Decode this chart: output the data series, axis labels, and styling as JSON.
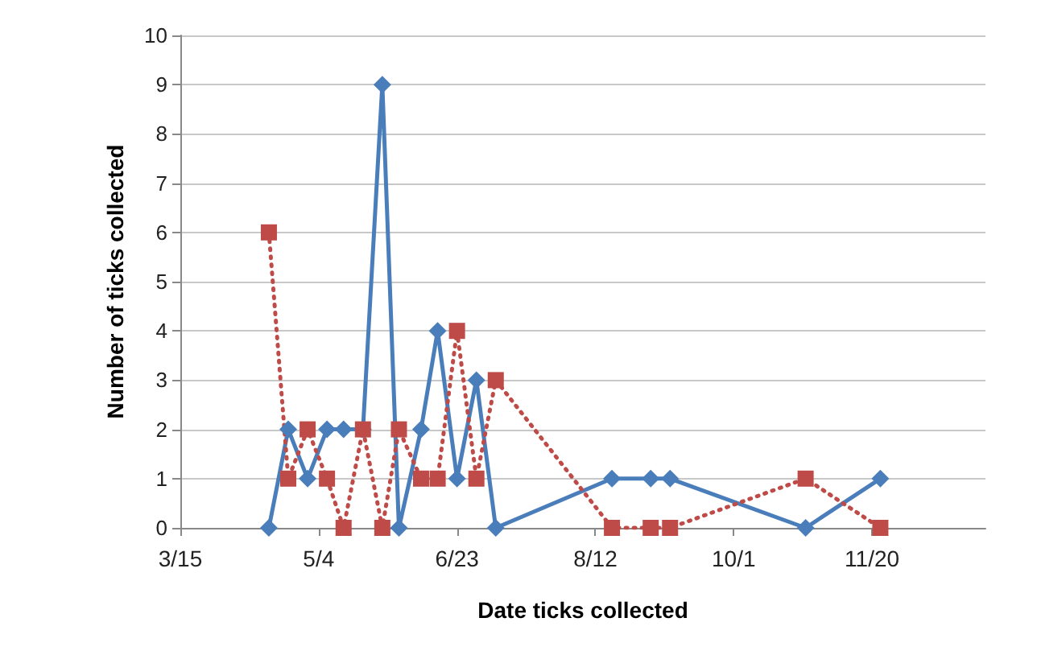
{
  "chart_data": {
    "type": "line",
    "xlabel": "Date ticks collected",
    "ylabel": "Number of ticks collected",
    "x": [
      "--04-16",
      "--04-23",
      "--04-30",
      "--05-07",
      "--05-13",
      "--05-20",
      "--05-27",
      "--06-02",
      "--06-10",
      "--06-16",
      "--06-23",
      "--06-30",
      "--07-07",
      "--08-18",
      "--09-01",
      "--09-08",
      "--10-27",
      "--11-23"
    ],
    "series": [
      {
        "color": "#4a7ebb",
        "marker": "diamond",
        "line_style": "solid",
        "values": [
          0,
          2,
          1,
          2,
          2,
          2,
          9,
          0,
          2,
          4,
          1,
          3,
          0,
          1,
          1,
          1,
          0,
          1
        ]
      },
      {
        "color": "#be4b48",
        "marker": "square",
        "line_style": "dotted",
        "values": [
          6,
          1,
          2,
          1,
          0,
          2,
          0,
          2,
          1,
          1,
          4,
          1,
          3,
          0,
          0,
          0,
          1,
          0
        ]
      }
    ],
    "xlim": [
      "--03-15",
      "--12-31"
    ],
    "xticks": [
      {
        "value": "--03-15",
        "label": "3/15"
      },
      {
        "value": "--05-04",
        "label": "5/4"
      },
      {
        "value": "--06-23",
        "label": "6/23"
      },
      {
        "value": "--08-12",
        "label": "8/12"
      },
      {
        "value": "--10-01",
        "label": "10/1"
      },
      {
        "value": "--11-20",
        "label": "11/20"
      }
    ],
    "ylim": [
      0,
      10
    ],
    "yticks": [
      0,
      1,
      2,
      3,
      4,
      5,
      6,
      7,
      8,
      9,
      10
    ],
    "grid": "y"
  }
}
